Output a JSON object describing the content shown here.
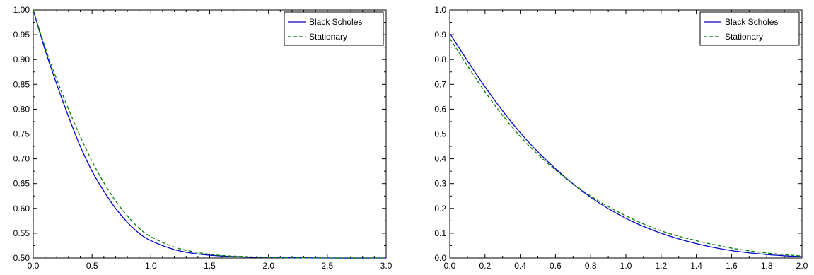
{
  "chart_data": [
    {
      "type": "line",
      "title": "",
      "xlabel": "",
      "ylabel": "",
      "xlim": [
        0.0,
        3.0
      ],
      "ylim": [
        0.5,
        1.0
      ],
      "xticks": [
        "0.0",
        "0.5",
        "1.0",
        "1.5",
        "2.0",
        "2.5",
        "3.0"
      ],
      "yticks": [
        "0.50",
        "0.55",
        "0.60",
        "0.65",
        "0.70",
        "0.75",
        "0.80",
        "0.85",
        "0.90",
        "0.95",
        "1.00"
      ],
      "grid": false,
      "legend": "top-right",
      "x": [
        0.0,
        0.1,
        0.2,
        0.3,
        0.4,
        0.5,
        0.6,
        0.7,
        0.8,
        0.9,
        1.0,
        1.2,
        1.4,
        1.6,
        1.8,
        2.0,
        2.5,
        3.0
      ],
      "series": [
        {
          "name": "Black Scholes",
          "color": "#0000cc",
          "style": "solid",
          "values": [
            1.0,
            0.92,
            0.85,
            0.785,
            0.725,
            0.675,
            0.635,
            0.6,
            0.572,
            0.55,
            0.535,
            0.517,
            0.508,
            0.504,
            0.502,
            0.501,
            0.5,
            0.5
          ]
        },
        {
          "name": "Stationary",
          "color": "#008000",
          "style": "dashed",
          "values": [
            1.0,
            0.925,
            0.86,
            0.8,
            0.745,
            0.695,
            0.652,
            0.615,
            0.585,
            0.56,
            0.543,
            0.522,
            0.511,
            0.505,
            0.503,
            0.501,
            0.5,
            0.5
          ]
        }
      ]
    },
    {
      "type": "line",
      "title": "",
      "xlabel": "",
      "ylabel": "",
      "xlim": [
        0.0,
        2.0
      ],
      "ylim": [
        0.0,
        1.0
      ],
      "xticks": [
        "0.0",
        "0.2",
        "0.4",
        "0.6",
        "0.8",
        "1.0",
        "1.2",
        "1.4",
        "1.6",
        "1.8",
        "2.0"
      ],
      "yticks": [
        "0.0",
        "0.1",
        "0.2",
        "0.3",
        "0.4",
        "0.5",
        "0.6",
        "0.7",
        "0.8",
        "0.9",
        "1.0"
      ],
      "grid": false,
      "legend": "top-right",
      "x": [
        0.0,
        0.2,
        0.4,
        0.6,
        0.8,
        1.0,
        1.2,
        1.4,
        1.6,
        1.8,
        2.0
      ],
      "series": [
        {
          "name": "Black Scholes",
          "color": "#0000cc",
          "style": "solid",
          "values": [
            0.905,
            0.69,
            0.505,
            0.36,
            0.245,
            0.16,
            0.1,
            0.058,
            0.03,
            0.014,
            0.005
          ]
        },
        {
          "name": "Stationary",
          "color": "#008000",
          "style": "dashed",
          "values": [
            0.885,
            0.67,
            0.49,
            0.355,
            0.25,
            0.17,
            0.11,
            0.07,
            0.04,
            0.02,
            0.008
          ]
        }
      ]
    }
  ]
}
